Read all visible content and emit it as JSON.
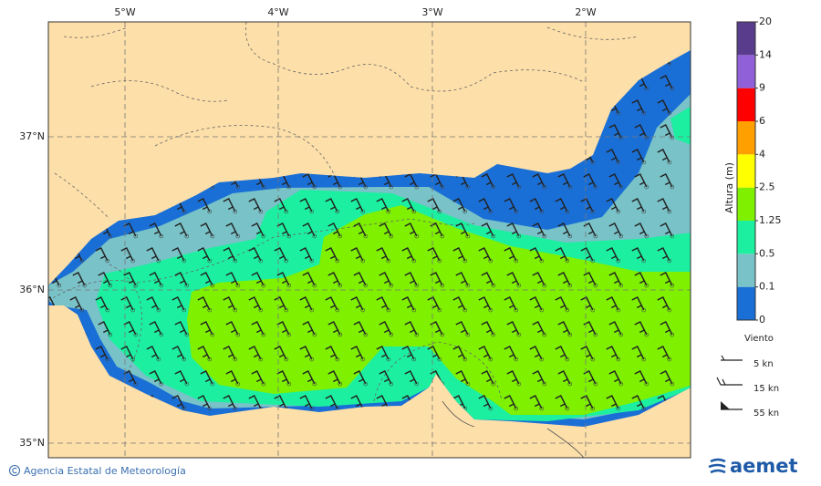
{
  "map": {
    "lon_labels": [
      "5°W",
      "4°W",
      "3°W",
      "2°W"
    ],
    "lat_labels": [
      "37°N",
      "36°N",
      "35°N"
    ]
  },
  "colorbar": {
    "title": "Altura (m)",
    "levels": [
      0,
      0.1,
      0.5,
      1.25,
      2.5,
      4,
      6,
      9,
      14,
      20
    ],
    "colors": [
      "#1a6fd6",
      "#78c2c8",
      "#1cf0a0",
      "#7ef000",
      "#ffff00",
      "#ffa000",
      "#ff0000",
      "#9060d8",
      "#5a3c8c"
    ]
  },
  "wind_legend": {
    "title": "Viento",
    "entries": [
      "5 kn",
      "15 kn",
      "55 kn"
    ]
  },
  "footer": {
    "credit": "Agencia Estatal de Meteorología",
    "logo": "aemet"
  }
}
